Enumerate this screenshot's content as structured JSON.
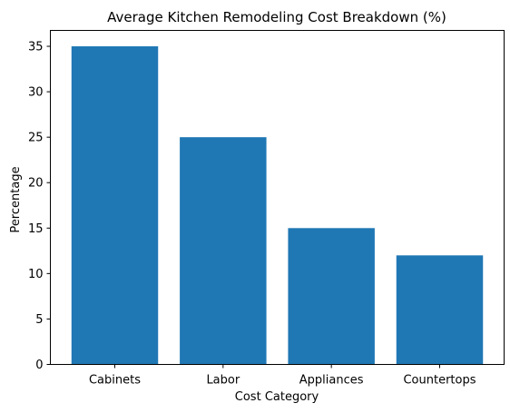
{
  "chart_data": {
    "type": "bar",
    "title": "Average Kitchen Remodeling Cost Breakdown (%)",
    "xlabel": "Cost Category",
    "ylabel": "Percentage",
    "categories": [
      "Cabinets",
      "Labor",
      "Appliances",
      "Countertops"
    ],
    "values": [
      35,
      25,
      15,
      12
    ],
    "ylim": [
      0,
      36.75
    ],
    "yticks": [
      0,
      5,
      10,
      15,
      20,
      25,
      30,
      35
    ],
    "grid": false,
    "legend": "none",
    "bar_color": "#1f77b4"
  }
}
